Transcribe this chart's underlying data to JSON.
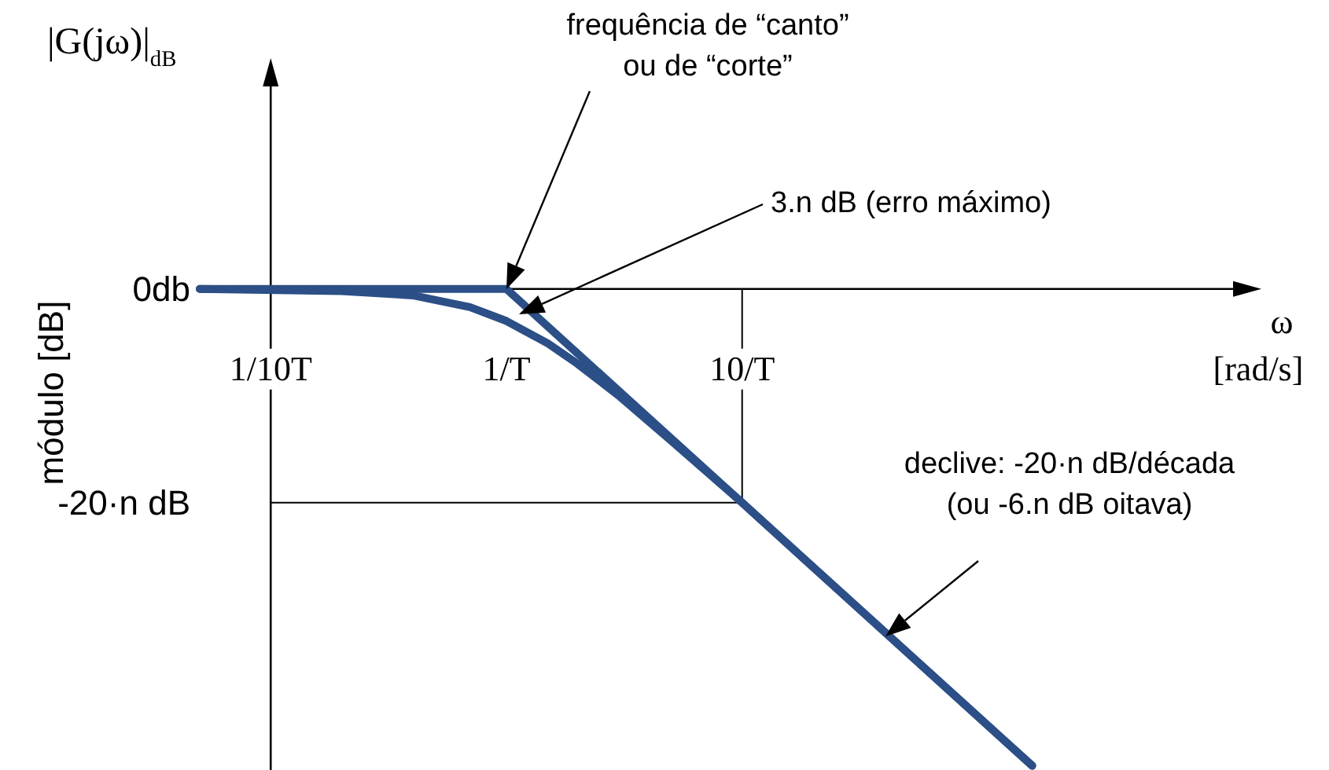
{
  "chart_data": {
    "type": "line",
    "title": "|G(jω)|$_{dB}$",
    "ylabel": "módulo [dB]",
    "xlabel": "ω [rad/s]",
    "log": "x",
    "xlim": [
      0.05,
      1500
    ],
    "ylim": [
      -45,
      21
    ],
    "xticks": [
      {
        "value": 0.1,
        "label": "1/10T"
      },
      {
        "value": 1,
        "label": "1/T"
      },
      {
        "value": 10,
        "label": "10/T"
      }
    ],
    "yticks": [
      {
        "value": 0,
        "label": "0db"
      },
      {
        "value": -20,
        "label": "-20·n dB"
      }
    ],
    "series": [
      {
        "color": "#2b4f86",
        "x": [
          0.05,
          1,
          170
        ],
        "values": [
          0,
          0,
          -44.6
        ]
      },
      {
        "color": "#2b4f86",
        "x": [
          0.05,
          0.2,
          0.4,
          0.7,
          1,
          1.5,
          2,
          3,
          5,
          10,
          170
        ],
        "values": [
          0,
          -0.2,
          -0.6,
          -1.7,
          -3,
          -5.1,
          -7,
          -10,
          -14.2,
          -20,
          -44.6
        ]
      }
    ],
    "ref_lines": [
      {
        "axis": "y",
        "value": -20,
        "color": "#000000"
      },
      {
        "axis": "x",
        "value": 10,
        "color": "#000000"
      }
    ],
    "annotations": [
      "frequência de “canto” ou de “corte”",
      "3.n dB (erro máximo)",
      "declive:  -20·n dB/década (ou -6.n dB oitava)"
    ],
    "grid": false,
    "marker": "none",
    "line_style": "solid"
  }
}
